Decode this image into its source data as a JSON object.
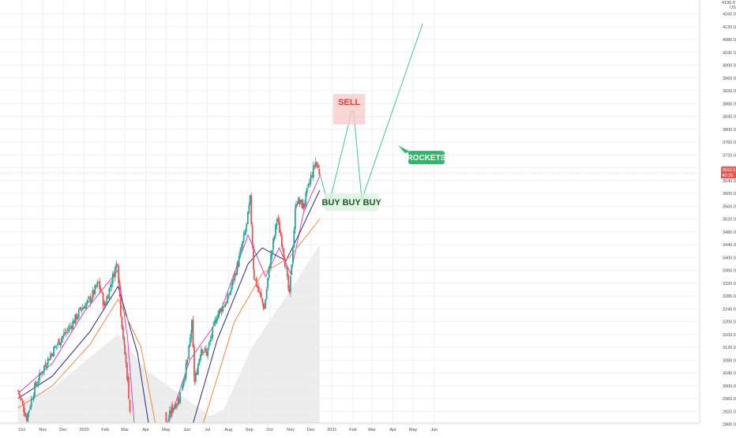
{
  "chart_data": {
    "type": "candlestick",
    "currency": "USD",
    "last_price": "3663.5",
    "last_change": "42:20",
    "y_axis": {
      "ticks": [
        2880.0,
        2920.0,
        2960.0,
        3000.0,
        3040.0,
        3080.0,
        3120.0,
        3160.0,
        3200.0,
        3240.0,
        3280.0,
        3320.0,
        3360.0,
        3400.0,
        3440.0,
        3480.0,
        3520.0,
        3560.0,
        3600.0,
        3640.0,
        3680.0,
        3720.0,
        3760.0,
        3800.0,
        3840.0,
        3880.0,
        3920.0,
        3960.0,
        4000.0,
        4040.0,
        4080.0,
        4120.0,
        4160.0
      ],
      "top_label": "4190.0"
    },
    "x_axis": {
      "labels": [
        "Oct",
        "Nov",
        "Dec",
        "2020",
        "Feb",
        "Mar",
        "Apr",
        "May",
        "Jun",
        "Jul",
        "Aug",
        "Sep",
        "Oct",
        "Nov",
        "Dec",
        "2021",
        "Feb",
        "Mar",
        "Apr",
        "May",
        "Jun"
      ]
    },
    "price_path": [
      {
        "x": "2019-09-25",
        "y": 2985
      },
      {
        "x": "2019-10-08",
        "y": 2900
      },
      {
        "x": "2019-10-20",
        "y": 2995
      },
      {
        "x": "2019-11-05",
        "y": 3070
      },
      {
        "x": "2019-11-25",
        "y": 3140
      },
      {
        "x": "2019-12-10",
        "y": 3180
      },
      {
        "x": "2019-12-28",
        "y": 3240
      },
      {
        "x": "2020-01-10",
        "y": 3270
      },
      {
        "x": "2020-01-22",
        "y": 3320
      },
      {
        "x": "2020-01-31",
        "y": 3250
      },
      {
        "x": "2020-02-19",
        "y": 3390
      },
      {
        "x": "2020-02-24",
        "y": 3230
      },
      {
        "x": "2020-03-01",
        "y": 3100
      },
      {
        "x": "2020-03-05",
        "y": 3020
      },
      {
        "x": "2020-03-10",
        "y": 2880
      },
      {
        "x": "2020-05-01",
        "y": 2880
      },
      {
        "x": "2020-05-10",
        "y": 2930
      },
      {
        "x": "2020-05-20",
        "y": 2960
      },
      {
        "x": "2020-06-02",
        "y": 3080
      },
      {
        "x": "2020-06-08",
        "y": 3190
      },
      {
        "x": "2020-06-12",
        "y": 3010
      },
      {
        "x": "2020-06-22",
        "y": 3120
      },
      {
        "x": "2020-06-30",
        "y": 3100
      },
      {
        "x": "2020-07-15",
        "y": 3220
      },
      {
        "x": "2020-07-31",
        "y": 3270
      },
      {
        "x": "2020-08-15",
        "y": 3380
      },
      {
        "x": "2020-08-28",
        "y": 3500
      },
      {
        "x": "2020-09-02",
        "y": 3580
      },
      {
        "x": "2020-09-08",
        "y": 3340
      },
      {
        "x": "2020-09-23",
        "y": 3240
      },
      {
        "x": "2020-10-01",
        "y": 3380
      },
      {
        "x": "2020-10-12",
        "y": 3520
      },
      {
        "x": "2020-10-20",
        "y": 3440
      },
      {
        "x": "2020-10-30",
        "y": 3280
      },
      {
        "x": "2020-11-09",
        "y": 3580
      },
      {
        "x": "2020-11-20",
        "y": 3560
      },
      {
        "x": "2020-12-01",
        "y": 3650
      },
      {
        "x": "2020-12-08",
        "y": 3700
      },
      {
        "x": "2020-12-14",
        "y": 3660
      }
    ],
    "projection": [
      {
        "x": "2020-12-14",
        "y": 3663
      },
      {
        "x": "2020-12-27",
        "y": 3560
      },
      {
        "x": "2021-01-30",
        "y": 3855
      },
      {
        "x": "2021-02-02",
        "y": 3855
      },
      {
        "x": "2021-02-14",
        "y": 3580
      },
      {
        "x": "2021-05-15",
        "y": 4130
      }
    ],
    "moving_averages": [
      {
        "name": "",
        "color": "#e040c0",
        "values": [
          {
            "x": "2019-09-25",
            "y": 2975
          },
          {
            "x": "2019-11-15",
            "y": 3070
          },
          {
            "x": "2020-01-01",
            "y": 3230
          },
          {
            "x": "2020-02-20",
            "y": 3360
          },
          {
            "x": "2020-03-05",
            "y": 3150
          },
          {
            "x": "2020-03-15",
            "y": 2880
          }
        ]
      },
      {
        "name": "",
        "color": "#e040c0",
        "values": [
          {
            "x": "2020-05-05",
            "y": 2880
          },
          {
            "x": "2020-06-05",
            "y": 3080
          },
          {
            "x": "2020-07-15",
            "y": 3200
          },
          {
            "x": "2020-08-30",
            "y": 3470
          },
          {
            "x": "2020-09-25",
            "y": 3340
          },
          {
            "x": "2020-10-15",
            "y": 3430
          },
          {
            "x": "2020-11-01",
            "y": 3350
          },
          {
            "x": "2020-11-20",
            "y": 3540
          },
          {
            "x": "2020-12-14",
            "y": 3655
          }
        ]
      },
      {
        "name": "",
        "color": "#2a2a7a",
        "values": [
          {
            "x": "2019-09-25",
            "y": 2960
          },
          {
            "x": "2019-11-15",
            "y": 3030
          },
          {
            "x": "2020-01-10",
            "y": 3170
          },
          {
            "x": "2020-02-20",
            "y": 3310
          },
          {
            "x": "2020-03-20",
            "y": 3100
          },
          {
            "x": "2020-04-05",
            "y": 2880
          }
        ]
      },
      {
        "name": "",
        "color": "#2a2a7a",
        "values": [
          {
            "x": "2020-06-10",
            "y": 2880
          },
          {
            "x": "2020-07-15",
            "y": 3140
          },
          {
            "x": "2020-08-30",
            "y": 3380
          },
          {
            "x": "2020-09-20",
            "y": 3430
          },
          {
            "x": "2020-10-25",
            "y": 3390
          },
          {
            "x": "2020-11-15",
            "y": 3480
          },
          {
            "x": "2020-12-14",
            "y": 3610
          }
        ]
      },
      {
        "name": "",
        "color": "#f08a3c",
        "values": [
          {
            "x": "2019-09-25",
            "y": 2930
          },
          {
            "x": "2019-11-15",
            "y": 3000
          },
          {
            "x": "2020-01-10",
            "y": 3130
          },
          {
            "x": "2020-02-20",
            "y": 3270
          },
          {
            "x": "2020-03-25",
            "y": 3120
          },
          {
            "x": "2020-04-15",
            "y": 2880
          }
        ]
      },
      {
        "name": "",
        "color": "#f08a3c",
        "values": [
          {
            "x": "2020-06-25",
            "y": 2880
          },
          {
            "x": "2020-08-10",
            "y": 3200
          },
          {
            "x": "2020-09-20",
            "y": 3350
          },
          {
            "x": "2020-10-30",
            "y": 3400
          },
          {
            "x": "2020-12-14",
            "y": 3520
          }
        ]
      }
    ],
    "shaded_area": [
      {
        "x": "2019-09-25",
        "y": 2955
      },
      {
        "x": "2019-11-15",
        "y": 2990
      },
      {
        "x": "2020-01-10",
        "y": 3090
      },
      {
        "x": "2020-02-20",
        "y": 3160
      },
      {
        "x": "2020-04-01",
        "y": 3050
      },
      {
        "x": "2020-05-20",
        "y": 2975
      },
      {
        "x": "2020-07-05",
        "y": 2905
      },
      {
        "x": "2020-07-25",
        "y": 2925
      },
      {
        "x": "2020-09-05",
        "y": 3120
      },
      {
        "x": "2020-11-01",
        "y": 3300
      },
      {
        "x": "2020-12-14",
        "y": 3440
      }
    ],
    "annotations": [
      {
        "text": "SELL",
        "style": "box",
        "bg": "#f7c9c9",
        "fg": "#e53935",
        "x_from": "2021-01-03",
        "x_to": "2021-02-19",
        "y_from": 3815,
        "y_to": 3910
      },
      {
        "text": "BUY BUY BUY",
        "style": "box",
        "bg": "#d9f2df",
        "fg": "#1b5e20",
        "x_from": "2020-12-21",
        "x_to": "2021-03-11",
        "y_from": 3545,
        "y_to": 3600
      },
      {
        "text": "ROCKETS",
        "style": "callout",
        "bg": "#2fb86a",
        "fg": "#ffffff",
        "x": "2021-04-12",
        "y": 3740
      }
    ],
    "colors": {
      "up": "#26a69a",
      "down": "#ef5350",
      "projection": "#44c98a",
      "last_price": "#ef5350"
    },
    "grid": true
  }
}
